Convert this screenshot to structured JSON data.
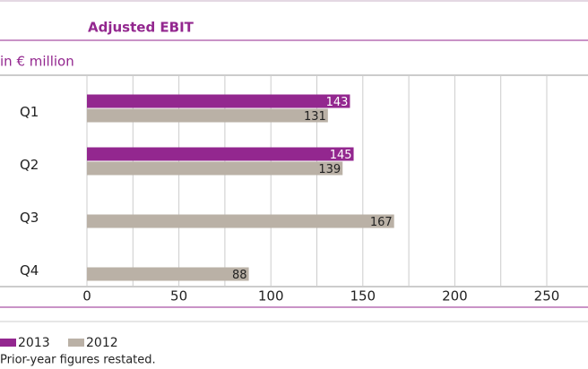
{
  "chart_data": {
    "type": "bar",
    "orientation": "horizontal",
    "title": "Adjusted EBIT",
    "subtitle": "in € million",
    "categories": [
      "Q1",
      "Q2",
      "Q3",
      "Q4"
    ],
    "series": [
      {
        "name": "2013",
        "color": "#93278f",
        "values": [
          143,
          145,
          null,
          null
        ]
      },
      {
        "name": "2012",
        "color": "#bab1a6",
        "values": [
          131,
          139,
          167,
          88
        ]
      }
    ],
    "xlim": [
      0,
      250
    ],
    "xticks": [
      0,
      50,
      100,
      150,
      200,
      250
    ],
    "minor_xticks": [
      25,
      75,
      125,
      175,
      225
    ],
    "grid": true,
    "legend": "bottom-left",
    "note": "Prior-year figures restated."
  }
}
